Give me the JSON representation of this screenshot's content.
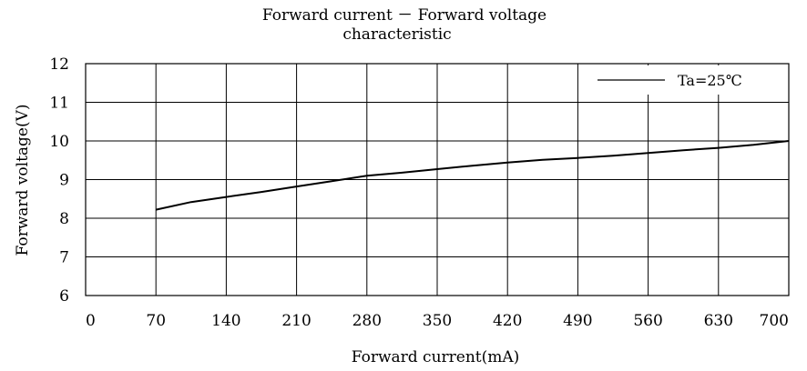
{
  "chart_data": {
    "type": "line",
    "title_line1": "Forward current － Forward voltage",
    "title_line2": "characteristic",
    "xlabel": "Forward current(mA)",
    "ylabel": "Forward voltage(V)",
    "xlim": [
      0,
      700
    ],
    "ylim": [
      6,
      12
    ],
    "x_ticks": [
      "0",
      "70",
      "140",
      "210",
      "280",
      "350",
      "420",
      "490",
      "560",
      "630",
      "700"
    ],
    "y_ticks": [
      "6",
      "7",
      "8",
      "9",
      "10",
      "11",
      "12"
    ],
    "grid": true,
    "legend_position": "top-right",
    "series": [
      {
        "name": "Ta=25℃",
        "color": "#000000",
        "x": [
          70,
          105,
          140,
          175,
          210,
          245,
          280,
          315,
          350,
          385,
          420,
          455,
          490,
          525,
          560,
          595,
          630,
          665,
          700
        ],
        "y": [
          8.22,
          8.42,
          8.55,
          8.68,
          8.82,
          8.96,
          9.1,
          9.18,
          9.27,
          9.36,
          9.44,
          9.51,
          9.56,
          9.62,
          9.69,
          9.76,
          9.82,
          9.9,
          10.0
        ]
      }
    ]
  }
}
